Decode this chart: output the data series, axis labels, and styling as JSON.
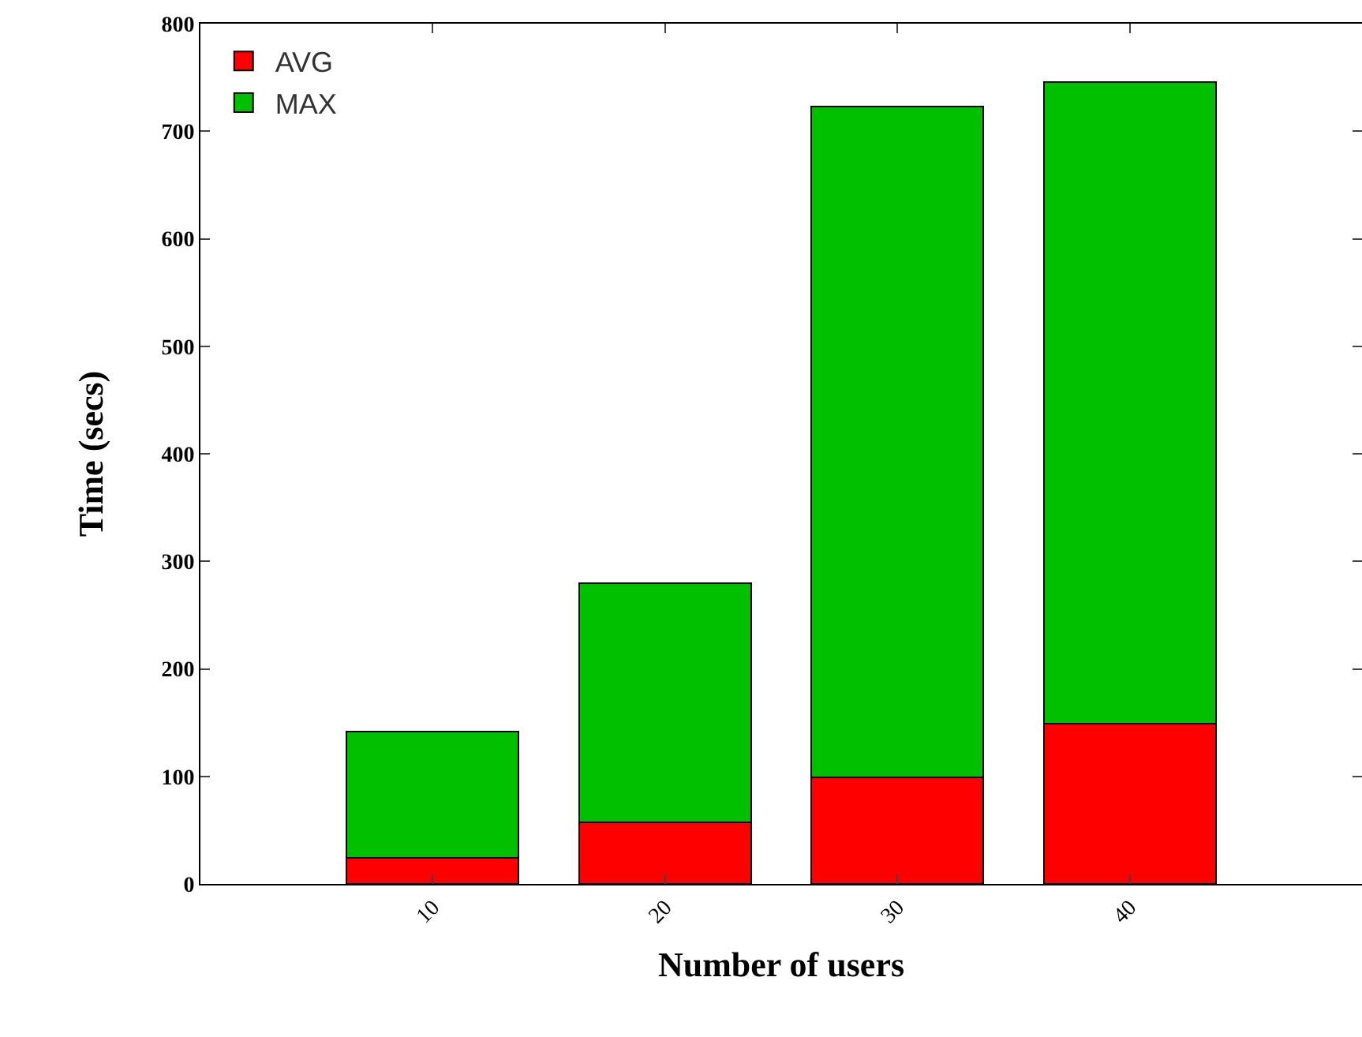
{
  "chart_data": {
    "type": "bar",
    "stacked": true,
    "xlabel": "Number of users",
    "ylabel": "Time (secs)",
    "x": [
      10,
      20,
      30,
      40
    ],
    "xlim": [
      0,
      50
    ],
    "xticks": [
      10,
      20,
      30,
      40
    ],
    "ylim": [
      0,
      800
    ],
    "yticks": [
      0,
      100,
      200,
      300,
      400,
      500,
      600,
      700,
      800
    ],
    "series": [
      {
        "name": "AVG",
        "color": "#ff0000",
        "values": [
          24,
          57,
          99,
          149
        ]
      },
      {
        "name": "MAX",
        "color": "#00c000",
        "values": [
          118,
          223,
          624,
          597
        ]
      }
    ],
    "legend": "top left"
  }
}
